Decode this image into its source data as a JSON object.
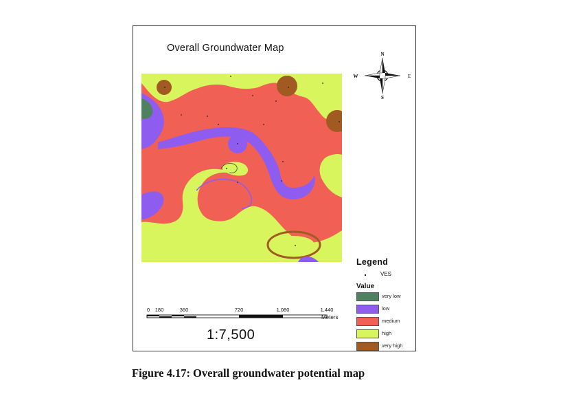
{
  "map": {
    "title": "Overall Groundwater Map",
    "caption": "Figure 4.17: Overall groundwater potential map"
  },
  "compass": {
    "n": "N",
    "s": "S",
    "e": "E",
    "w": "W"
  },
  "legend": {
    "title": "Legend",
    "ves_label": "VES",
    "value_title": "Value",
    "classes": [
      {
        "label": "very low",
        "color": "#4f8060"
      },
      {
        "label": "low",
        "color": "#8f5cf0"
      },
      {
        "label": "medium",
        "color": "#f06055"
      },
      {
        "label": "high",
        "color": "#d9f55e"
      },
      {
        "label": "very high",
        "color": "#a05a22"
      }
    ]
  },
  "scale": {
    "ticks": [
      "0",
      "180",
      "360",
      "720",
      "1,080",
      "1,440"
    ],
    "unit": "Meters",
    "ratio": "1:7,500"
  }
}
